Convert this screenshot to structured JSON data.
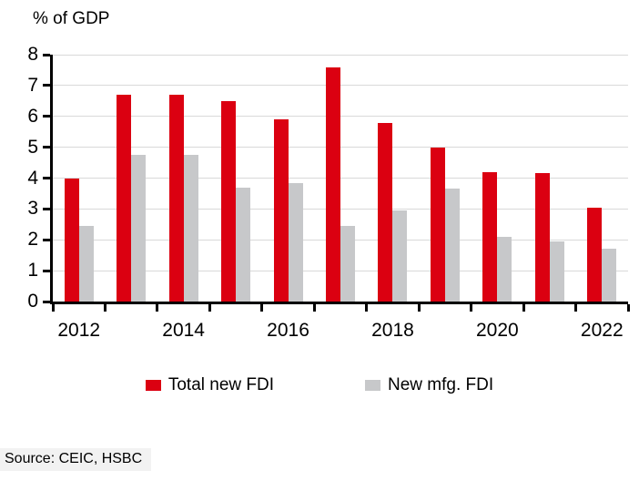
{
  "header": {
    "title": "% of GDP"
  },
  "legend": {
    "items": [
      {
        "label": "Total new FDI",
        "color": "#db0011"
      },
      {
        "label": "New mfg. FDI",
        "color": "#c7c8ca"
      }
    ]
  },
  "footer": {
    "source": "Source: CEIC, HSBC"
  },
  "chart_data": {
    "type": "bar",
    "title": "% of GDP",
    "ylabel": "% of GDP",
    "xlabel": "",
    "categories": [
      "2012",
      "2013",
      "2014",
      "2015",
      "2016",
      "2017",
      "2018",
      "2019",
      "2020",
      "2021",
      "2022"
    ],
    "series": [
      {
        "name": "Total new FDI",
        "color": "#db0011",
        "values": [
          4.0,
          6.7,
          6.7,
          6.5,
          5.9,
          7.6,
          5.8,
          5.0,
          4.2,
          4.15,
          3.05
        ]
      },
      {
        "name": "New mfg. FDI",
        "color": "#c7c8ca",
        "values": [
          2.45,
          4.75,
          4.75,
          3.7,
          3.85,
          2.45,
          2.95,
          3.65,
          2.1,
          1.95,
          1.7
        ]
      }
    ],
    "ylim": [
      0,
      8
    ],
    "yticks": [
      0,
      1,
      2,
      3,
      4,
      5,
      6,
      7,
      8
    ],
    "xtick_labels": [
      "2012",
      "2014",
      "2016",
      "2018",
      "2020",
      "2022"
    ],
    "grid": true,
    "legend_position": "bottom",
    "axis_color": "#000000",
    "gridline_color": "#d9d9d9",
    "source": "Source: CEIC, HSBC"
  }
}
